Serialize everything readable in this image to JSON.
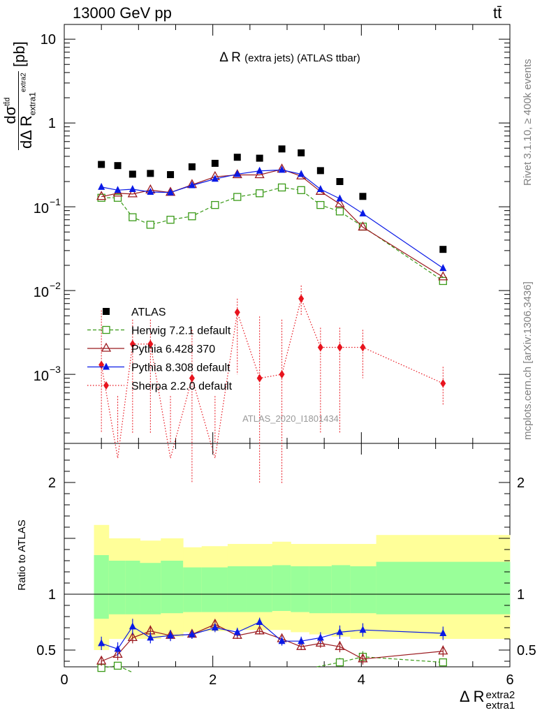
{
  "header": {
    "energy_label": "13000 GeV pp",
    "process_label": "tt̄"
  },
  "side_labels": {
    "rivet": "Rivet 3.1.10, ≥ 400k events",
    "mcplots": "mcplots.cern.ch [arXiv:1306.3436]"
  },
  "chart_data": [
    {
      "type": "scatter",
      "title": "Δ R (extra jets) (ATLAS ttbar)",
      "watermark": "ATLAS_2020_I1801434",
      "ylabel": "dσ^{tt̄d} / dΔ R_{extra1}^{extra2} [pb]",
      "yscale": "log",
      "ylim": [
        0.00015,
        15
      ],
      "xlim": [
        0,
        6
      ],
      "grid": false,
      "legend_position": "lower-left",
      "x": [
        0.5,
        0.72,
        0.92,
        1.16,
        1.43,
        1.72,
        2.03,
        2.33,
        2.63,
        2.93,
        3.19,
        3.45,
        3.71,
        4.02,
        5.1
      ],
      "series": [
        {
          "name": "ATLAS",
          "color": "#000000",
          "marker": "square-filled",
          "values": [
            0.32,
            0.31,
            0.245,
            0.25,
            0.242,
            0.3,
            0.33,
            0.39,
            0.38,
            0.49,
            0.44,
            0.27,
            0.2,
            0.133,
            0.031
          ]
        },
        {
          "name": "Herwig 7.2.1 default",
          "color": "#3a9a17",
          "marker": "square-open",
          "dash": "5,3",
          "values": [
            0.128,
            0.128,
            0.075,
            0.061,
            0.07,
            0.077,
            0.105,
            0.131,
            0.145,
            0.17,
            0.158,
            0.105,
            0.088,
            0.058,
            0.013
          ]
        },
        {
          "name": "Pythia 6.428 370",
          "color": "#9b1a1f",
          "marker": "triangle-open",
          "values": [
            0.132,
            0.145,
            0.142,
            0.158,
            0.148,
            0.183,
            0.228,
            0.24,
            0.24,
            0.28,
            0.232,
            0.152,
            0.108,
            0.057,
            0.0145
          ]
        },
        {
          "name": "Pythia 8.308 default",
          "color": "#0a1ae6",
          "marker": "triangle-filled",
          "values": [
            0.172,
            0.158,
            0.162,
            0.15,
            0.148,
            0.18,
            0.215,
            0.245,
            0.268,
            0.275,
            0.245,
            0.162,
            0.125,
            0.083,
            0.0185
          ]
        },
        {
          "name": "Sherpa 2.2.0 default",
          "color": "#e8141e",
          "marker": "diamond-filled",
          "dash": "1.5,2.5",
          "values": [
            0.0013,
            0.0001,
            0.0023,
            0.0023,
            0.0001,
            0.0009,
            0.0001,
            0.0055,
            0.0009,
            0.001,
            0.008,
            0.0021,
            0.0021,
            0.0021,
            0.00078
          ],
          "err_up": [
            0.0045,
            0.0,
            0.0022,
            0.0022,
            0.0,
            0.0025,
            0.0,
            0.0025,
            0.004,
            0.0035,
            0.0035,
            0.0015,
            0.0015,
            0.0013,
            0.00045
          ],
          "err_down": [
            0.0011,
            0.0,
            0.0021,
            0.0021,
            0.0,
            0.00085,
            0.0,
            0.0045,
            0.00085,
            0.00095,
            0.003,
            0.0019,
            0.0019,
            0.0012,
            0.00035
          ]
        }
      ]
    },
    {
      "type": "scatter",
      "ylabel": "Ratio to ATLAS",
      "xlabel": "Δ R_{extra1}^{extra2}",
      "ylim": [
        0.35,
        2.35
      ],
      "xlim": [
        0,
        6
      ],
      "xticks": [
        "0",
        "2",
        "4",
        "6"
      ],
      "yticks": [
        "0.5",
        "1",
        "2"
      ],
      "reference_line": 1,
      "bands": {
        "edges": [
          0.4,
          0.6,
          0.82,
          1.02,
          1.3,
          1.6,
          1.85,
          2.2,
          2.45,
          2.8,
          3.05,
          3.3,
          3.6,
          3.85,
          4.2,
          6.0
        ],
        "yellow_lo": [
          0.5,
          0.6,
          0.6,
          0.6,
          0.62,
          0.66,
          0.67,
          0.68,
          0.68,
          0.68,
          0.66,
          0.64,
          0.62,
          0.6,
          0.6
        ],
        "yellow_hi": [
          1.62,
          1.5,
          1.5,
          1.48,
          1.5,
          1.42,
          1.43,
          1.45,
          1.45,
          1.47,
          1.45,
          1.45,
          1.45,
          1.45,
          1.53
        ],
        "green_lo": [
          0.78,
          0.82,
          0.82,
          0.82,
          0.83,
          0.84,
          0.84,
          0.84,
          0.84,
          0.85,
          0.84,
          0.83,
          0.83,
          0.83,
          0.82
        ],
        "green_hi": [
          1.35,
          1.3,
          1.3,
          1.28,
          1.3,
          1.24,
          1.24,
          1.25,
          1.25,
          1.26,
          1.25,
          1.25,
          1.26,
          1.25,
          1.29
        ],
        "colors": {
          "yellow": "#ffff99",
          "green": "#99ff99"
        }
      },
      "x": [
        0.5,
        0.72,
        0.92,
        1.16,
        1.43,
        1.72,
        2.03,
        2.33,
        2.63,
        2.93,
        3.19,
        3.45,
        3.71,
        4.02,
        5.1
      ],
      "series": [
        {
          "name": "Herwig 7.2.1 default",
          "color": "#3a9a17",
          "marker": "square-open",
          "dash": "5,3",
          "values": [
            0.34,
            0.36,
            null,
            null,
            null,
            null,
            null,
            null,
            null,
            null,
            null,
            null,
            0.39,
            0.44,
            0.39
          ],
          "err": [
            0.02,
            0.02,
            null,
            null,
            null,
            null,
            null,
            null,
            null,
            null,
            null,
            null,
            0.04,
            0.05,
            0.03
          ]
        },
        {
          "name": "Pythia 6.428 370",
          "color": "#9b1a1f",
          "marker": "triangle-open",
          "values": [
            0.4,
            0.46,
            0.61,
            0.67,
            0.63,
            0.64,
            0.73,
            0.63,
            0.67,
            0.6,
            0.53,
            0.56,
            0.53,
            0.42,
            0.49
          ],
          "err": [
            0.04,
            0.05,
            0.05,
            0.05,
            0.04,
            0.04,
            0.04,
            0.03,
            0.03,
            0.03,
            0.03,
            0.04,
            0.05,
            0.05,
            0.05
          ]
        },
        {
          "name": "Pythia 8.308 default",
          "color": "#0a1ae6",
          "marker": "triangle-filled",
          "values": [
            0.56,
            0.51,
            0.71,
            0.61,
            0.63,
            0.64,
            0.7,
            0.66,
            0.75,
            0.58,
            0.58,
            0.61,
            0.66,
            0.68,
            0.65
          ],
          "err": [
            0.06,
            0.06,
            0.07,
            0.05,
            0.05,
            0.04,
            0.04,
            0.04,
            0.04,
            0.04,
            0.04,
            0.05,
            0.06,
            0.06,
            0.06
          ]
        }
      ]
    }
  ]
}
